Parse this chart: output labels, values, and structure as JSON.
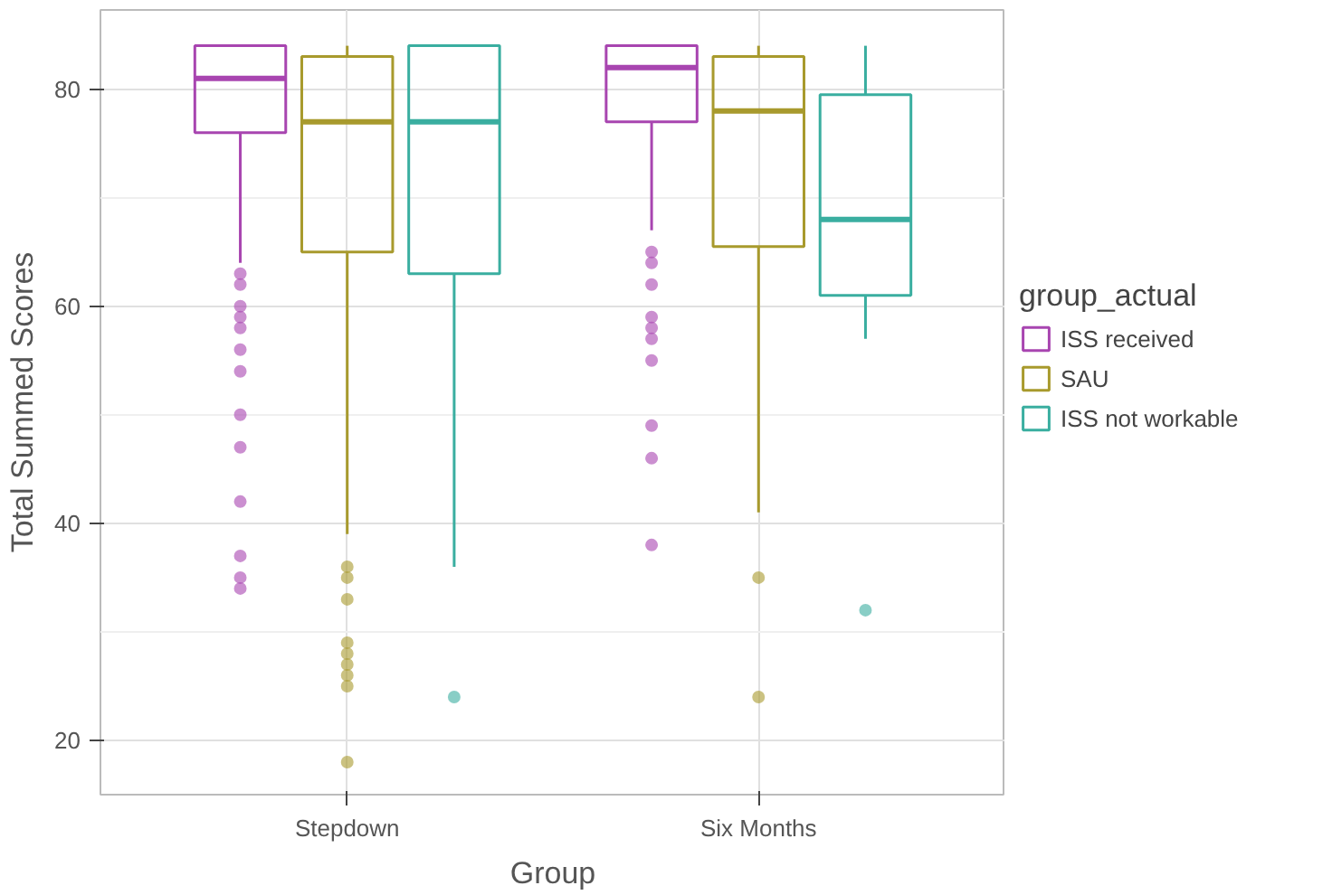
{
  "chart_data": {
    "type": "box",
    "xlabel": "Group",
    "ylabel": "Total Summed Scores",
    "legend_title": "group_actual",
    "categories": [
      "Stepdown",
      "Six Months"
    ],
    "series": [
      {
        "name": "ISS received",
        "color": "#a845b0",
        "boxes": [
          {
            "low": 64,
            "q1": 76,
            "median": 81,
            "q3": 84,
            "high": 84,
            "outliers": [
              63,
              62,
              60,
              59,
              58,
              56,
              54,
              50,
              47,
              42,
              37,
              35,
              34
            ]
          },
          {
            "low": 67,
            "q1": 77,
            "median": 82,
            "q3": 84,
            "high": 84,
            "outliers": [
              65,
              64,
              62,
              59,
              58,
              57,
              55,
              49,
              46,
              38
            ]
          }
        ]
      },
      {
        "name": "SAU",
        "color": "#a89a2d",
        "boxes": [
          {
            "low": 39,
            "q1": 65,
            "median": 77,
            "q3": 83,
            "high": 84,
            "outliers": [
              36,
              35,
              33,
              29,
              28,
              27,
              26,
              25,
              18
            ]
          },
          {
            "low": 41,
            "q1": 65.5,
            "median": 78,
            "q3": 83,
            "high": 84,
            "outliers": [
              35,
              24
            ]
          }
        ]
      },
      {
        "name": "ISS not workable",
        "color": "#3aaea0",
        "boxes": [
          {
            "low": 36,
            "q1": 63,
            "median": 77,
            "q3": 84,
            "high": 84,
            "outliers": [
              24
            ]
          },
          {
            "low": 57,
            "q1": 61,
            "median": 68,
            "q3": 79.5,
            "high": 84,
            "outliers": [
              32
            ]
          }
        ]
      }
    ],
    "ylim": [
      15,
      87.3
    ],
    "yticks": [
      20,
      40,
      60,
      80
    ],
    "grid": true,
    "legend": "right"
  }
}
